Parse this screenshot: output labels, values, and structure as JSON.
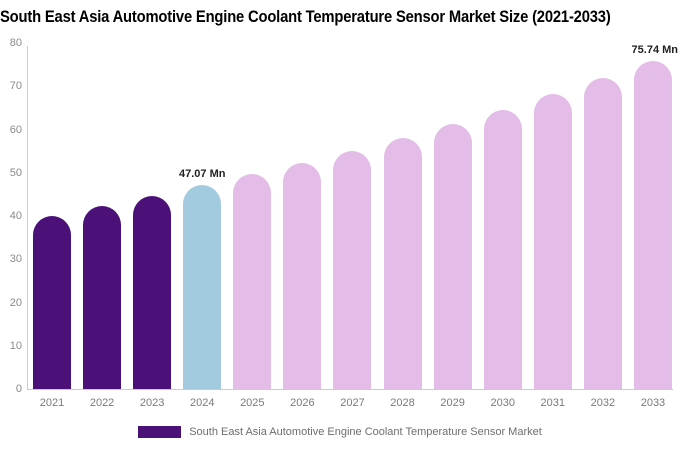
{
  "title": "South East Asia Automotive Engine Coolant Temperature Sensor Market Size (2021-2033)",
  "legend": {
    "label": "South East Asia Automotive Engine Coolant Temperature Sensor Market",
    "swatch_color": "#4B1179"
  },
  "colors": {
    "historical_bar": "#4B1179",
    "highlight_bar": "#A3CBE0",
    "forecast_bar": "#E4BCE8",
    "axis_line": "#cccccc",
    "tick_text": "#8a8a8a",
    "annotation_text": "#1f1f1f"
  },
  "chart_data": {
    "type": "bar",
    "title": "South East Asia Automotive Engine Coolant Temperature Sensor Market Size (2021-2033)",
    "unit": "Mn",
    "categories": [
      "2021",
      "2022",
      "2023",
      "2024",
      "2025",
      "2026",
      "2027",
      "2028",
      "2029",
      "2030",
      "2031",
      "2032",
      "2033"
    ],
    "values": [
      40.1,
      42.3,
      44.6,
      47.07,
      49.6,
      52.3,
      55.1,
      58.1,
      61.3,
      64.6,
      68.1,
      71.8,
      75.74
    ],
    "bar_colors": [
      "#4B1179",
      "#4B1179",
      "#4B1179",
      "#A3CBE0",
      "#E4BCE8",
      "#E4BCE8",
      "#E4BCE8",
      "#E4BCE8",
      "#E4BCE8",
      "#E4BCE8",
      "#E4BCE8",
      "#E4BCE8",
      "#E4BCE8"
    ],
    "xlabel": "",
    "ylabel": "",
    "ylim": [
      0,
      80
    ],
    "yticks": [
      0,
      10,
      20,
      30,
      40,
      50,
      60,
      70,
      80
    ],
    "grid": false,
    "legend_position": "bottom",
    "annotations": [
      {
        "category": "2024",
        "text": "47.07 Mn"
      },
      {
        "category": "2033",
        "text": "75.74 Mn"
      }
    ]
  }
}
